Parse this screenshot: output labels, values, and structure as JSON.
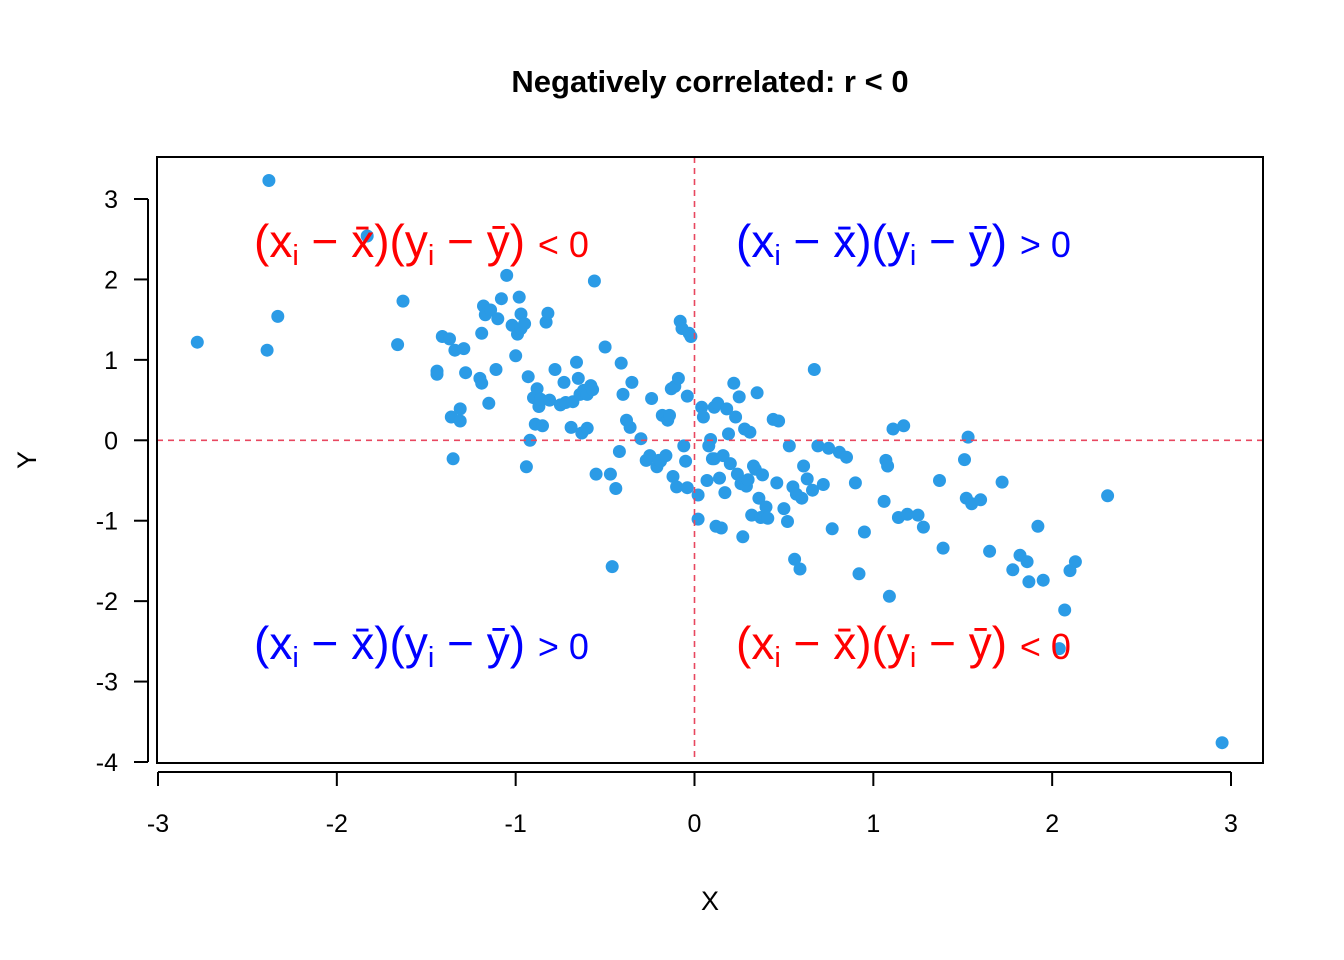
{
  "chart_data": {
    "type": "scatter",
    "title": "Negatively correlated: r < 0",
    "xlabel": "X",
    "ylabel": "Y",
    "xlim": [
      -3,
      3
    ],
    "ylim": [
      -4,
      3
    ],
    "xticks": [
      "-3",
      "-2",
      "-1",
      "0",
      "1",
      "2",
      "3"
    ],
    "yticks": [
      "-4",
      "-3",
      "-2",
      "-1",
      "0",
      "1",
      "2",
      "3"
    ],
    "grid": false,
    "point_color": "#2b9be6",
    "reference_lines": {
      "x": 0,
      "y": 0,
      "color": "#e8475f",
      "style": "dashed"
    },
    "quadrant_labels": [
      {
        "position": "top-left",
        "text": "(xi − x̄)(yi − ȳ) < 0",
        "color": "#ff0000"
      },
      {
        "position": "top-right",
        "text": "(xi − x̄)(yi − ȳ) > 0",
        "color": "#0000ff"
      },
      {
        "position": "bottom-left",
        "text": "(xi − x̄)(yi − ȳ) > 0",
        "color": "#0000ff"
      },
      {
        "position": "bottom-right",
        "text": "(xi − x̄)(yi − ȳ) < 0",
        "color": "#ff0000"
      }
    ],
    "points": [
      [
        -2.78,
        1.22
      ],
      [
        -2.38,
        3.23
      ],
      [
        -2.39,
        1.12
      ],
      [
        -2.33,
        1.54
      ],
      [
        -1.83,
        2.54
      ],
      [
        -1.66,
        1.19
      ],
      [
        -1.63,
        1.73
      ],
      [
        -1.44,
        0.82
      ],
      [
        -1.44,
        0.86
      ],
      [
        -1.41,
        1.29
      ],
      [
        -1.37,
        1.26
      ],
      [
        -1.36,
        0.29
      ],
      [
        -1.35,
        -0.23
      ],
      [
        -1.34,
        1.12
      ],
      [
        -1.31,
        0.39
      ],
      [
        -1.31,
        0.24
      ],
      [
        -1.29,
        1.14
      ],
      [
        -1.28,
        0.84
      ],
      [
        -1.2,
        0.77
      ],
      [
        -1.19,
        0.71
      ],
      [
        -1.19,
        1.33
      ],
      [
        -1.18,
        1.67
      ],
      [
        -1.17,
        1.56
      ],
      [
        -1.15,
        0.46
      ],
      [
        -1.14,
        1.62
      ],
      [
        -1.11,
        0.88
      ],
      [
        -1.1,
        1.51
      ],
      [
        -1.08,
        1.76
      ],
      [
        -1.05,
        2.05
      ],
      [
        -1.02,
        1.43
      ],
      [
        -1.0,
        1.05
      ],
      [
        -0.99,
        1.32
      ],
      [
        -0.98,
        1.78
      ],
      [
        -0.97,
        1.39
      ],
      [
        -0.97,
        1.57
      ],
      [
        -0.95,
        1.45
      ],
      [
        -0.94,
        -0.33
      ],
      [
        -0.93,
        0.79
      ],
      [
        -0.92,
        0.0
      ],
      [
        -0.9,
        0.53
      ],
      [
        -0.89,
        0.2
      ],
      [
        -0.88,
        0.64
      ],
      [
        -0.87,
        0.42
      ],
      [
        -0.86,
        0.51
      ],
      [
        -0.85,
        0.18
      ],
      [
        -0.83,
        1.47
      ],
      [
        -0.82,
        1.58
      ],
      [
        -0.81,
        0.5
      ],
      [
        -0.78,
        0.88
      ],
      [
        -0.75,
        0.44
      ],
      [
        -0.73,
        0.72
      ],
      [
        -0.72,
        0.47
      ],
      [
        -0.69,
        0.16
      ],
      [
        -0.68,
        0.48
      ],
      [
        -0.66,
        0.97
      ],
      [
        -0.65,
        0.77
      ],
      [
        -0.64,
        0.57
      ],
      [
        -0.63,
        0.09
      ],
      [
        -0.62,
        0.62
      ],
      [
        -0.6,
        0.15
      ],
      [
        -0.6,
        0.57
      ],
      [
        -0.58,
        0.68
      ],
      [
        -0.57,
        0.63
      ],
      [
        -0.56,
        1.98
      ],
      [
        -0.55,
        -0.42
      ],
      [
        -0.5,
        1.16
      ],
      [
        -0.47,
        -0.42
      ],
      [
        -0.46,
        -1.57
      ],
      [
        -0.44,
        -0.6
      ],
      [
        -0.42,
        -0.14
      ],
      [
        -0.41,
        0.96
      ],
      [
        -0.4,
        0.57
      ],
      [
        -0.38,
        0.25
      ],
      [
        -0.36,
        0.16
      ],
      [
        -0.35,
        0.72
      ],
      [
        -0.3,
        0.02
      ],
      [
        -0.27,
        -0.25
      ],
      [
        -0.25,
        -0.19
      ],
      [
        -0.24,
        0.52
      ],
      [
        -0.21,
        -0.33
      ],
      [
        -0.2,
        -0.25
      ],
      [
        -0.19,
        -0.26
      ],
      [
        -0.18,
        0.31
      ],
      [
        -0.16,
        -0.19
      ],
      [
        -0.15,
        0.25
      ],
      [
        -0.14,
        0.31
      ],
      [
        -0.13,
        0.64
      ],
      [
        -0.12,
        -0.45
      ],
      [
        -0.11,
        0.67
      ],
      [
        -0.1,
        -0.58
      ],
      [
        -0.09,
        0.77
      ],
      [
        -0.08,
        1.48
      ],
      [
        -0.07,
        1.39
      ],
      [
        -0.06,
        -0.07
      ],
      [
        -0.05,
        -0.26
      ],
      [
        -0.04,
        -0.59
      ],
      [
        -0.04,
        0.55
      ],
      [
        -0.03,
        1.33
      ],
      [
        -0.02,
        1.29
      ],
      [
        0.02,
        -0.68
      ],
      [
        0.02,
        -0.98
      ],
      [
        0.04,
        0.41
      ],
      [
        0.05,
        0.29
      ],
      [
        0.07,
        -0.5
      ],
      [
        0.08,
        -0.07
      ],
      [
        0.09,
        0.01
      ],
      [
        0.1,
        -0.23
      ],
      [
        0.11,
        -0.23
      ],
      [
        0.11,
        0.41
      ],
      [
        0.12,
        -1.07
      ],
      [
        0.13,
        0.46
      ],
      [
        0.14,
        -0.47
      ],
      [
        0.15,
        -1.09
      ],
      [
        0.16,
        -0.19
      ],
      [
        0.17,
        -0.65
      ],
      [
        0.18,
        0.39
      ],
      [
        0.19,
        0.08
      ],
      [
        0.2,
        -0.29
      ],
      [
        0.22,
        0.71
      ],
      [
        0.23,
        0.29
      ],
      [
        0.24,
        -0.42
      ],
      [
        0.25,
        0.54
      ],
      [
        0.26,
        -0.54
      ],
      [
        0.27,
        -1.2
      ],
      [
        0.28,
        0.14
      ],
      [
        0.29,
        -0.57
      ],
      [
        0.3,
        -0.49
      ],
      [
        0.31,
        0.1
      ],
      [
        0.32,
        -0.93
      ],
      [
        0.33,
        -0.32
      ],
      [
        0.34,
        -0.36
      ],
      [
        0.35,
        0.59
      ],
      [
        0.36,
        -0.72
      ],
      [
        0.37,
        -0.96
      ],
      [
        0.38,
        -0.43
      ],
      [
        0.39,
        -0.95
      ],
      [
        0.4,
        -0.83
      ],
      [
        0.41,
        -0.97
      ],
      [
        0.44,
        0.26
      ],
      [
        0.46,
        -0.53
      ],
      [
        0.47,
        0.24
      ],
      [
        0.5,
        -0.85
      ],
      [
        0.52,
        -1.01
      ],
      [
        0.53,
        -0.07
      ],
      [
        0.55,
        -0.58
      ],
      [
        0.56,
        -1.48
      ],
      [
        0.57,
        -0.67
      ],
      [
        0.59,
        -1.6
      ],
      [
        0.6,
        -0.72
      ],
      [
        0.61,
        -0.32
      ],
      [
        0.63,
        -0.48
      ],
      [
        0.66,
        -0.62
      ],
      [
        0.67,
        0.88
      ],
      [
        0.69,
        -0.07
      ],
      [
        0.72,
        -0.55
      ],
      [
        0.75,
        -0.1
      ],
      [
        0.77,
        -1.1
      ],
      [
        0.81,
        -0.15
      ],
      [
        0.85,
        -0.21
      ],
      [
        0.9,
        -0.53
      ],
      [
        0.92,
        -1.66
      ],
      [
        0.95,
        -1.14
      ],
      [
        1.06,
        -0.76
      ],
      [
        1.07,
        -0.25
      ],
      [
        1.08,
        -0.32
      ],
      [
        1.09,
        -1.94
      ],
      [
        1.11,
        0.14
      ],
      [
        1.14,
        -0.96
      ],
      [
        1.17,
        0.18
      ],
      [
        1.19,
        -0.92
      ],
      [
        1.25,
        -0.93
      ],
      [
        1.28,
        -1.08
      ],
      [
        1.37,
        -0.5
      ],
      [
        1.39,
        -1.34
      ],
      [
        1.51,
        -0.24
      ],
      [
        1.52,
        -0.72
      ],
      [
        1.53,
        0.04
      ],
      [
        1.55,
        -0.79
      ],
      [
        1.6,
        -0.74
      ],
      [
        1.65,
        -1.38
      ],
      [
        1.72,
        -0.52
      ],
      [
        1.78,
        -1.61
      ],
      [
        1.82,
        -1.43
      ],
      [
        1.86,
        -1.51
      ],
      [
        1.87,
        -1.76
      ],
      [
        1.92,
        -1.07
      ],
      [
        1.95,
        -1.74
      ],
      [
        2.04,
        -2.59
      ],
      [
        2.07,
        -2.11
      ],
      [
        2.1,
        -1.62
      ],
      [
        2.13,
        -1.51
      ],
      [
        2.31,
        -0.69
      ],
      [
        2.95,
        -3.76
      ]
    ]
  }
}
